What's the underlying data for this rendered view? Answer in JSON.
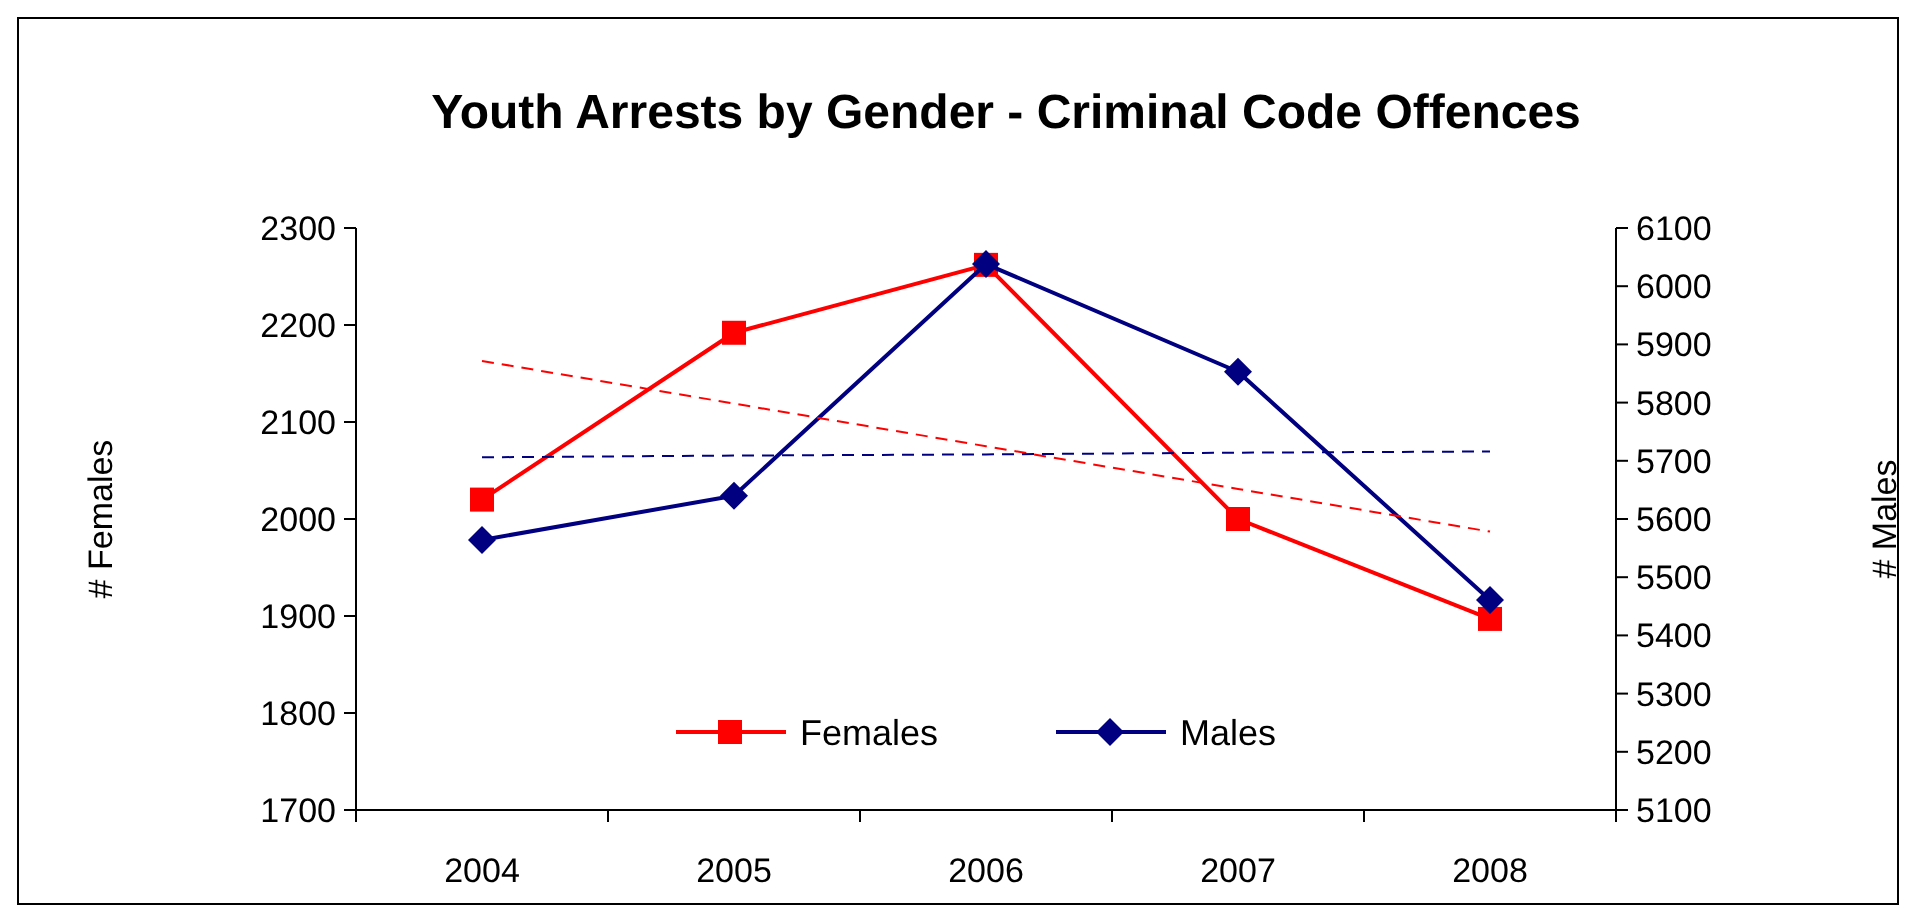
{
  "chart_data": {
    "type": "line",
    "title": "Youth Arrests by Gender - Criminal Code Offences",
    "ylabel": "# Females",
    "y2label": "# Males",
    "categories": [
      "2004",
      "2005",
      "2006",
      "2007",
      "2008"
    ],
    "ylim": [
      1700,
      2300
    ],
    "yticks": [
      1700,
      1800,
      1900,
      2000,
      2100,
      2200,
      2300
    ],
    "y2lim": [
      5100,
      6100
    ],
    "y2ticks": [
      5100,
      5200,
      5300,
      5400,
      5500,
      5600,
      5700,
      5800,
      5900,
      6000,
      6100
    ],
    "series": [
      {
        "name": "Females",
        "color": "#ff0000",
        "marker": "square",
        "values": [
          2020,
          2192,
          2262,
          2000,
          1897
        ]
      },
      {
        "name": "Males",
        "color": "#000080",
        "marker": "diamond",
        "axis": "y2",
        "values": [
          5564,
          5640,
          6038,
          5853,
          5461
        ]
      },
      {
        "color": "#ff0000",
        "line_style": "dashed",
        "marker": "none",
        "values": [
          2163,
          2119,
          2075,
          2031,
          1987
        ]
      },
      {
        "color": "#000080",
        "line_style": "dashed",
        "marker": "none",
        "axis": "y2",
        "values": [
          5706,
          5709,
          5711,
          5714,
          5716
        ]
      }
    ],
    "legend": "bottom",
    "grid": false
  }
}
